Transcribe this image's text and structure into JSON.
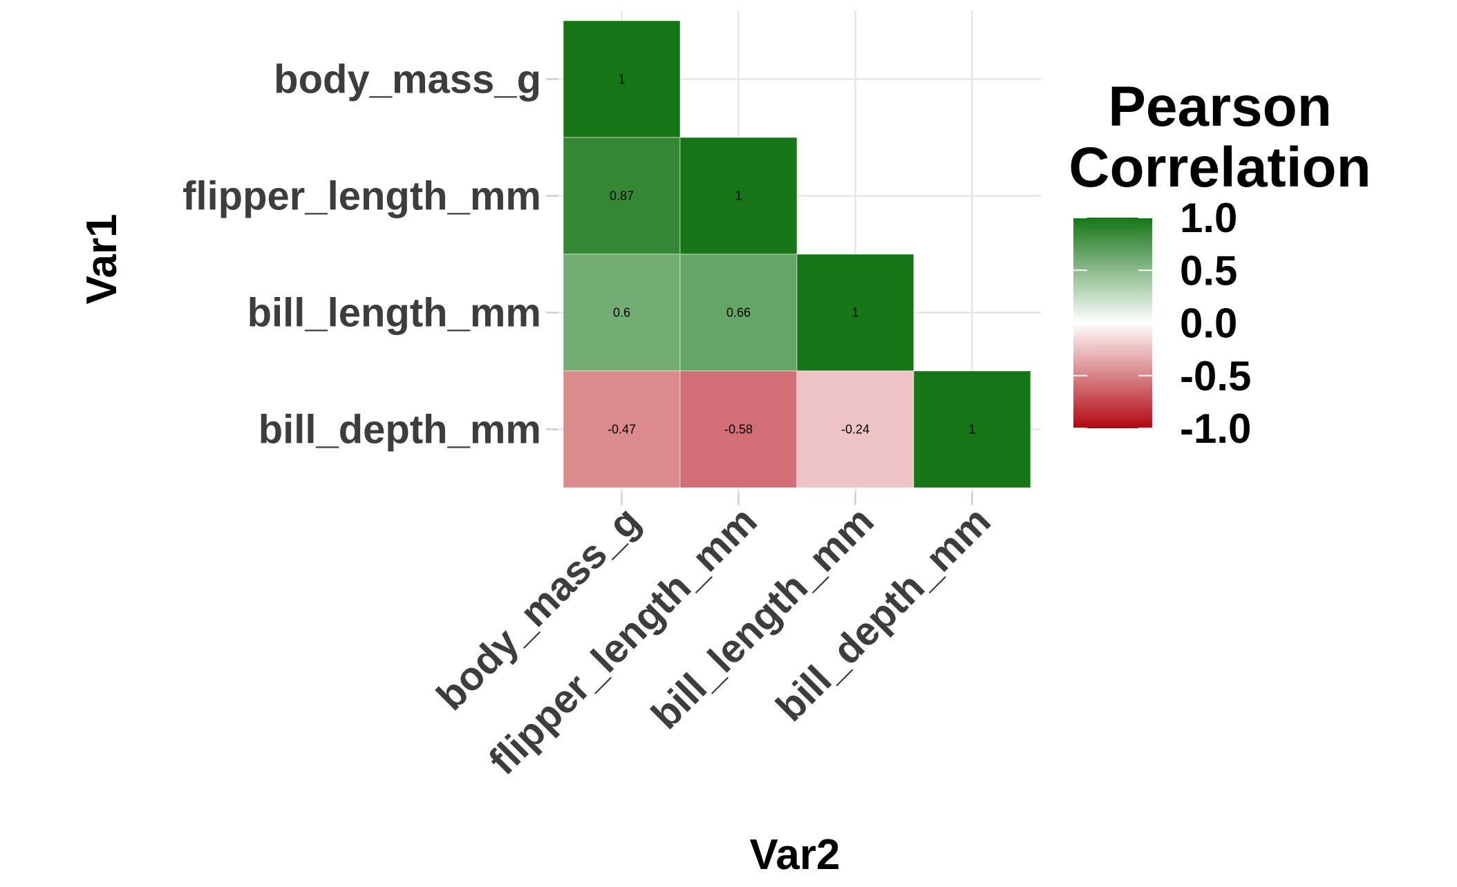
{
  "chart_data": {
    "type": "heatmap",
    "x_categories": [
      "body_mass_g",
      "flipper_length_mm",
      "bill_length_mm",
      "bill_depth_mm"
    ],
    "y_categories": [
      "bill_depth_mm",
      "bill_length_mm",
      "flipper_length_mm",
      "body_mass_g"
    ],
    "xlabel": "Var2",
    "ylabel": "Var1",
    "cells": [
      {
        "x": "body_mass_g",
        "y": "body_mass_g",
        "value": 1,
        "label": "1"
      },
      {
        "x": "body_mass_g",
        "y": "flipper_length_mm",
        "value": 0.87,
        "label": "0.87"
      },
      {
        "x": "flipper_length_mm",
        "y": "flipper_length_mm",
        "value": 1,
        "label": "1"
      },
      {
        "x": "body_mass_g",
        "y": "bill_length_mm",
        "value": 0.6,
        "label": "0.6"
      },
      {
        "x": "flipper_length_mm",
        "y": "bill_length_mm",
        "value": 0.66,
        "label": "0.66"
      },
      {
        "x": "bill_length_mm",
        "y": "bill_length_mm",
        "value": 1,
        "label": "1"
      },
      {
        "x": "body_mass_g",
        "y": "bill_depth_mm",
        "value": -0.47,
        "label": "-0.47"
      },
      {
        "x": "flipper_length_mm",
        "y": "bill_depth_mm",
        "value": -0.58,
        "label": "-0.58"
      },
      {
        "x": "bill_length_mm",
        "y": "bill_depth_mm",
        "value": -0.24,
        "label": "-0.24"
      },
      {
        "x": "bill_depth_mm",
        "y": "bill_depth_mm",
        "value": 1,
        "label": "1"
      }
    ],
    "legend": {
      "title_lines": [
        "Pearson",
        "Correlation"
      ],
      "breaks": [
        1.0,
        0.5,
        0.0,
        -0.5,
        -1.0
      ],
      "break_labels": [
        "1.0",
        "0.5",
        "0.0",
        "-0.5",
        "-1.0"
      ],
      "limits": [
        -1,
        1
      ],
      "placement": "right"
    },
    "colors": {
      "low": "#b2070f",
      "mid": "#ffffff",
      "high": "#167616"
    },
    "grid": true
  }
}
